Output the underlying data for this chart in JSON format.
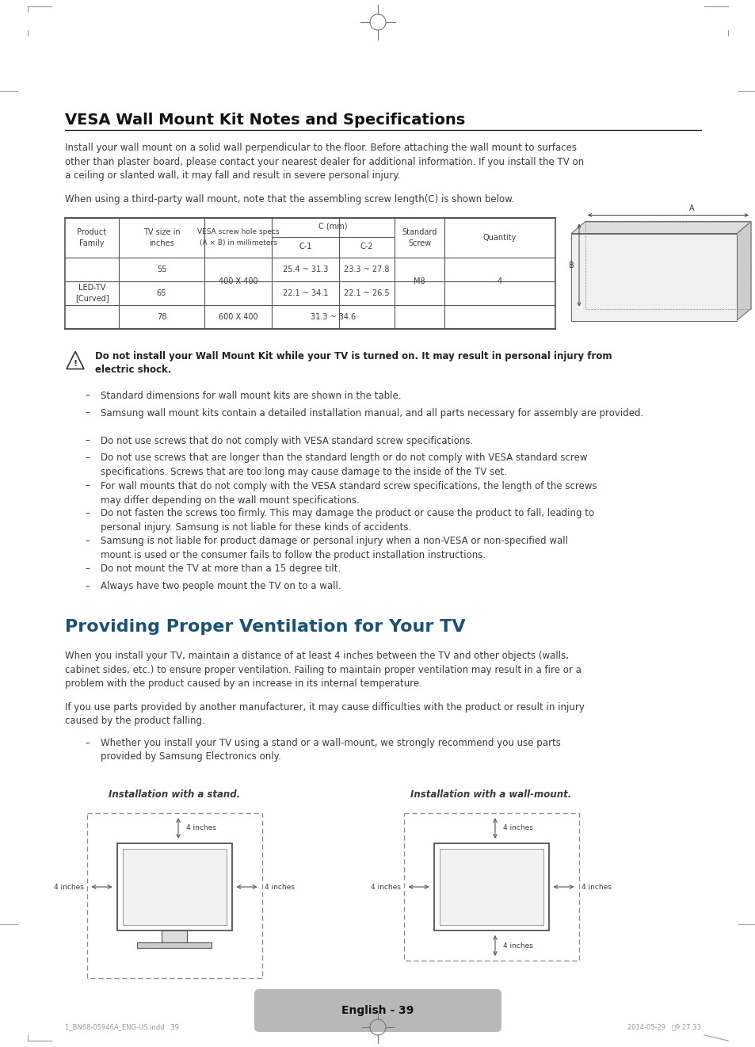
{
  "page_bg": "#ffffff",
  "text_color": "#3a3a3a",
  "title_color": "#111111",
  "section2_title_color": "#1a5276",
  "section1_title": "VESA Wall Mount Kit Notes and Specifications",
  "para1_line1": "Install your wall mount on a solid wall perpendicular to the floor. Before attaching the wall mount to surfaces",
  "para1_line2": "other than plaster board, please contact your nearest dealer for additional information. If you install the TV on",
  "para1_line3": "a ceiling or slanted wall, it may fall and result in severe personal injury.",
  "para2": "When using a third-party wall mount, note that the assembling screw length(C) is shown below.",
  "warning_line1": "Do not install your Wall Mount Kit while your TV is turned on. It may result in personal injury from",
  "warning_line2": "electric shock.",
  "bullets": [
    "Standard dimensions for wall mount kits are shown in the table.",
    "Samsung wall mount kits contain a detailed installation manual, and all parts necessary for assembly are provided.",
    "Do not use screws that do not comply with VESA standard screw specifications.",
    "Do not use screws that are longer than the standard length or do not comply with VESA standard screw\nspecifications. Screws that are too long may cause damage to the inside of the TV set.",
    "For wall mounts that do not comply with the VESA standard screw specifications, the length of the screws\nmay differ depending on the wall mount specifications.",
    "Do not fasten the screws too firmly. This may damage the product or cause the product to fall, leading to\npersonal injury. Samsung is not liable for these kinds of accidents.",
    "Samsung is not liable for product damage or personal injury when a non-VESA or non-specified wall\nmount is used or the consumer fails to follow the product installation instructions.",
    "Do not mount the TV at more than a 15 degree tilt.",
    "Always have two people mount the TV on to a wall."
  ],
  "section2_title": "Providing Proper Ventilation for Your TV",
  "s2_para1_line1": "When you install your TV, maintain a distance of at least 4 inches between the TV and other objects (walls,",
  "s2_para1_line2": "cabinet sides, etc.) to ensure proper ventilation. Failing to maintain proper ventilation may result in a fire or a",
  "s2_para1_line3": "problem with the product caused by an increase in its internal temperature.",
  "s2_para2_line1": "If you use parts provided by another manufacturer, it may cause difficulties with the product or result in injury",
  "s2_para2_line2": "caused by the product falling.",
  "s2_bullet_line1": "Whether you install your TV using a stand or a wall-mount, we strongly recommend you use parts",
  "s2_bullet_line2": "provided by Samsung Electronics only.",
  "footer_text": "English - 39",
  "bottom_text_left": "1_BN68-05946A_ENG-US.indd   39",
  "bottom_text_right": "2014-05-29   \u00039:27:33"
}
